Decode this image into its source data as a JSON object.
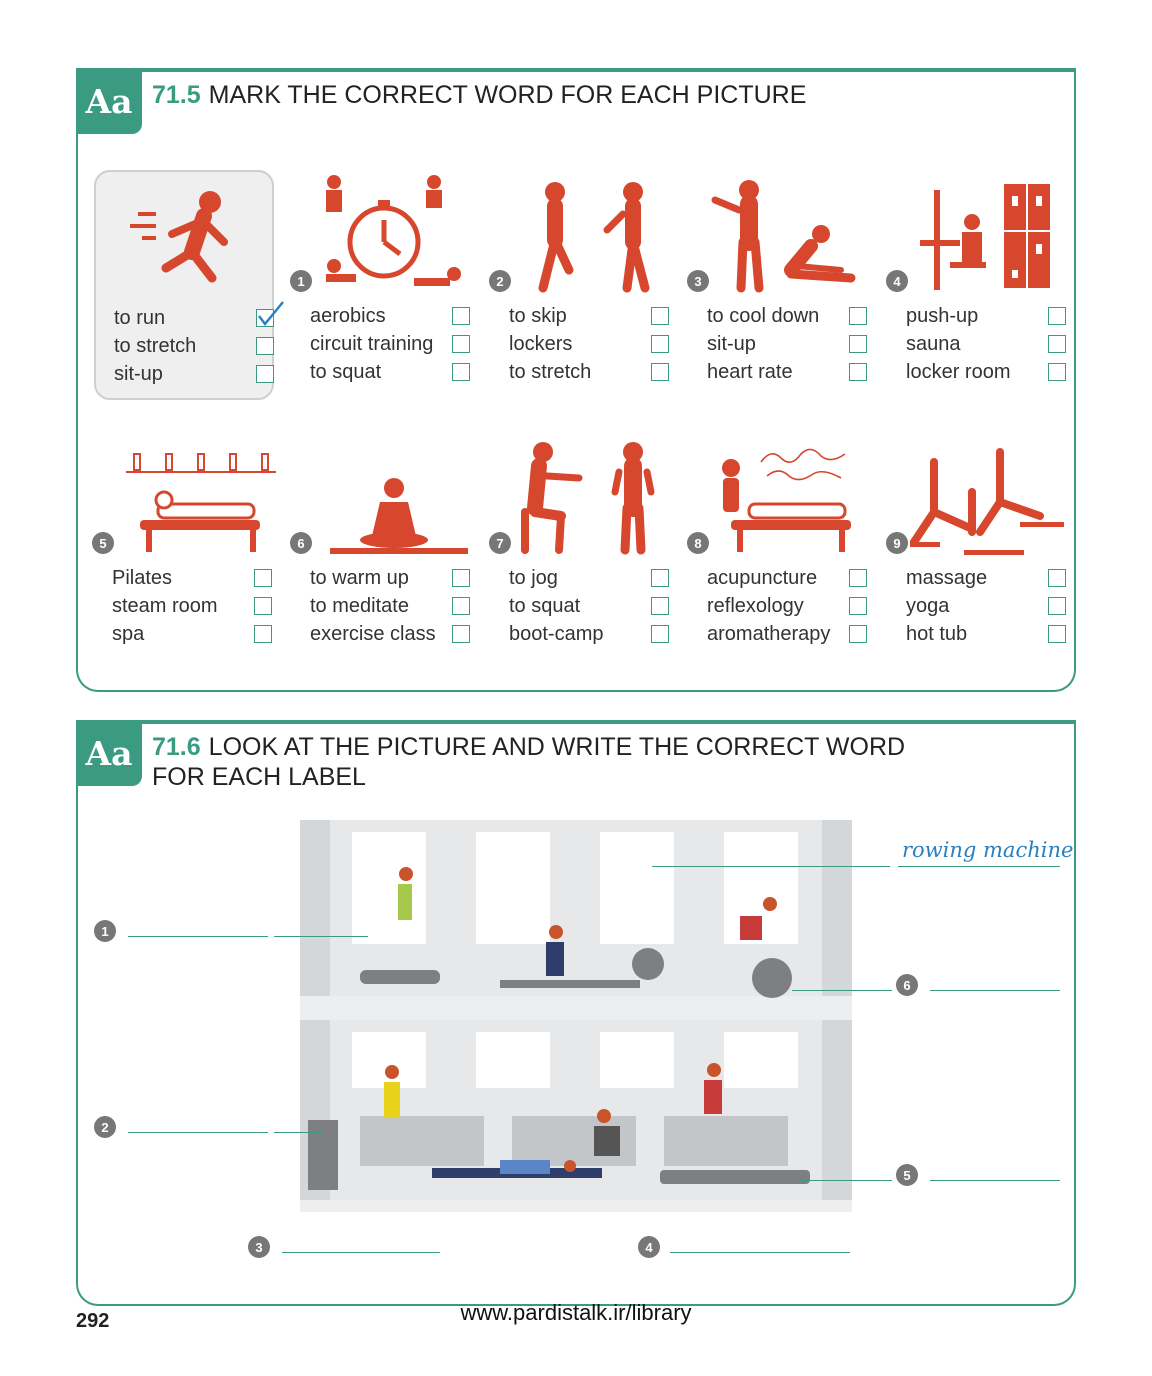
{
  "colors": {
    "accent": "#3a9a82",
    "figure": "#d6472e",
    "tick": "#2a7fbf",
    "badge": "#777777"
  },
  "exercise1": {
    "badge": "Aa",
    "number": "71.5",
    "title": "MARK THE CORRECT WORD FOR EACH PICTURE",
    "items": [
      {
        "number": "",
        "icon": "runner-icon",
        "checked_index": 0,
        "options": [
          "to run",
          "to stretch",
          "sit-up"
        ]
      },
      {
        "number": "1",
        "icon": "circuit-training-icon",
        "options": [
          "aerobics",
          "circuit training",
          "to squat"
        ]
      },
      {
        "number": "2",
        "icon": "stretch-icon",
        "options": [
          "to skip",
          "lockers",
          "to stretch"
        ]
      },
      {
        "number": "3",
        "icon": "cool-down-icon",
        "options": [
          "to cool down",
          "sit-up",
          "heart rate"
        ]
      },
      {
        "number": "4",
        "icon": "locker-room-icon",
        "options": [
          "push-up",
          "sauna",
          "locker room"
        ]
      },
      {
        "number": "5",
        "icon": "spa-icon",
        "options": [
          "Pilates",
          "steam room",
          "spa"
        ]
      },
      {
        "number": "6",
        "icon": "meditation-icon",
        "options": [
          "to warm up",
          "to meditate",
          "exercise class"
        ]
      },
      {
        "number": "7",
        "icon": "squat-icon",
        "options": [
          "to jog",
          "to squat",
          "boot-camp"
        ]
      },
      {
        "number": "8",
        "icon": "aromatherapy-icon",
        "options": [
          "acupuncture",
          "reflexology",
          "aromatherapy"
        ]
      },
      {
        "number": "9",
        "icon": "yoga-icon",
        "options": [
          "massage",
          "yoga",
          "hot tub"
        ]
      }
    ]
  },
  "exercise2": {
    "badge": "Aa",
    "number": "71.6",
    "title_line1": "LOOK AT THE PICTURE AND WRITE THE CORRECT WORD",
    "title_line2": "FOR EACH LABEL",
    "example_answer": "rowing machine",
    "labels": [
      "1",
      "2",
      "3",
      "4",
      "5",
      "6"
    ]
  },
  "page_number": "292",
  "footer_url": "www.pardistalk.ir/library"
}
